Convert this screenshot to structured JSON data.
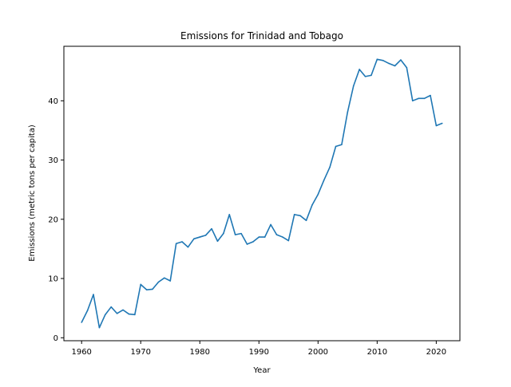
{
  "chart_data": {
    "type": "line",
    "title": "Emissions for Trinidad and Tobago",
    "xlabel": "Year",
    "ylabel": "Emissions (metric tons per capita)",
    "xlim": [
      1957,
      2024
    ],
    "ylim": [
      -0.5,
      49.2
    ],
    "xticks": [
      1960,
      1970,
      1980,
      1990,
      2000,
      2010,
      2020
    ],
    "yticks": [
      0,
      10,
      20,
      30,
      40
    ],
    "grid": false,
    "line_color": "#1f77b4",
    "series": [
      {
        "x": [
          1960,
          1961,
          1962,
          1963,
          1964,
          1965,
          1966,
          1967,
          1968,
          1969,
          1970,
          1971,
          1972,
          1973,
          1974,
          1975,
          1976,
          1977,
          1978,
          1979,
          1980,
          1981,
          1982,
          1983,
          1984,
          1985,
          1986,
          1987,
          1988,
          1989,
          1990,
          1991,
          1992,
          1993,
          1994,
          1995,
          1996,
          1997,
          1998,
          1999,
          2000,
          2001,
          2002,
          2003,
          2004,
          2005,
          2006,
          2007,
          2008,
          2009,
          2010,
          2011,
          2012,
          2013,
          2014,
          2015,
          2016,
          2017,
          2018,
          2019,
          2020,
          2021
        ],
        "values": [
          2.6,
          4.6,
          7.3,
          1.7,
          3.9,
          5.2,
          4.1,
          4.7,
          4.0,
          3.9,
          9.0,
          8.1,
          8.2,
          9.4,
          10.1,
          9.6,
          15.9,
          16.2,
          15.3,
          16.7,
          17.0,
          17.3,
          18.4,
          16.3,
          17.6,
          20.8,
          17.4,
          17.6,
          15.8,
          16.2,
          17.0,
          17.0,
          19.1,
          17.4,
          17.0,
          16.4,
          20.8,
          20.6,
          19.8,
          22.4,
          24.2,
          26.6,
          28.8,
          32.3,
          32.6,
          38.1,
          42.5,
          45.3,
          44.1,
          44.3,
          47.0,
          46.8,
          46.3,
          45.9,
          46.9,
          45.6,
          40.0,
          40.4,
          40.4,
          40.9,
          35.8,
          36.2
        ]
      }
    ]
  }
}
